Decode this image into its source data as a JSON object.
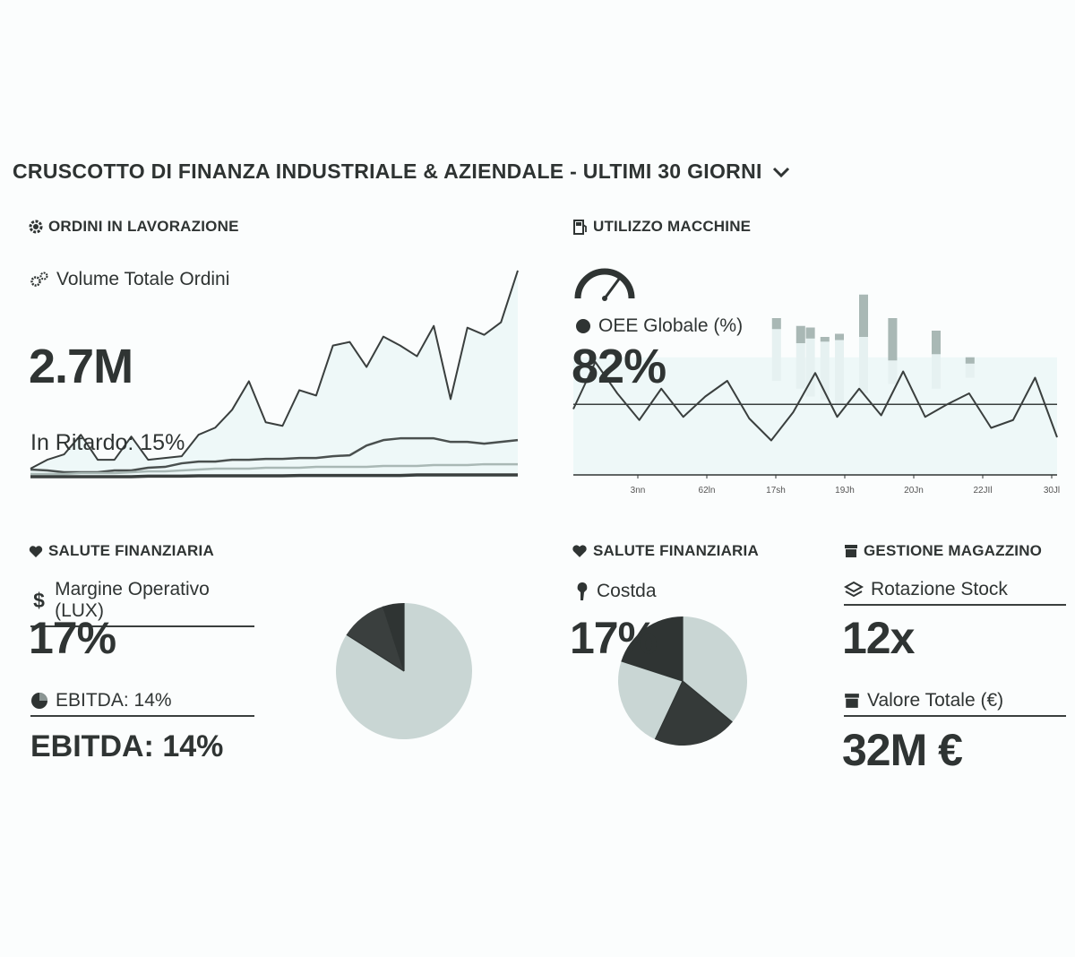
{
  "header": {
    "title": "CRUSCOTTO DI FINANZA INDUSTRIALE & AZIENDALE - ULTIMI 30 GIORNI"
  },
  "orders": {
    "section_title": "ORDINI IN LAVORAZIONE",
    "metric_label": "Volume Totale Ordini",
    "metric_value": "2.7M",
    "delay_label": "In Ritardo: 15%"
  },
  "machines": {
    "section_title": "UTILIZZO MACCHINE",
    "metric_label": "OEE Globale (%)",
    "metric_value": "82%"
  },
  "finance_left": {
    "section_title": "SALUTE FINANZIARIA",
    "margin_label": "Margine Operativo (LUX)",
    "margin_value": "17%",
    "ebitda_label": "EBITDA: 14%",
    "ebitda_value": "EBITDA: 14%"
  },
  "finance_right": {
    "section_title": "SALUTE FINANZIARIA",
    "cost_label": "Costda",
    "cost_value": "17%"
  },
  "warehouse": {
    "section_title": "GESTIONE MAGAZZINO",
    "rotation_label": "Rotazione Stock",
    "rotation_value": "12x",
    "value_label": "Valore Totale (€)",
    "value_value": "32M €"
  },
  "colors": {
    "dark": "#2f3433",
    "fill": "#eef8f8",
    "light": "#c9d6d4",
    "mid": "#a9b8b5"
  },
  "chart_data": [
    {
      "type": "area",
      "series": [
        {
          "values": [
            0.5,
            1.0,
            1.3,
            2.4,
            1.0,
            1.0,
            2.3,
            1.0,
            1.1,
            1.2,
            2.4,
            2.8,
            3.8,
            5.4,
            3.1,
            2.9,
            4.9,
            4.6,
            7.4,
            7.6,
            6.2,
            7.9,
            7.4,
            6.8,
            8.5,
            4.4,
            8.4,
            8.0,
            8.7,
            11.6
          ]
        },
        {
          "values": [
            0.45,
            0.4,
            0.3,
            0.3,
            0.3,
            0.4,
            0.4,
            0.55,
            0.6,
            0.8,
            0.9,
            0.9,
            1.0,
            1.0,
            1.05,
            1.05,
            1.1,
            1.1,
            1.2,
            1.25,
            1.8,
            2.1,
            2.2,
            2.2,
            2.2,
            2.0,
            2.0,
            1.9,
            2.0,
            2.1
          ]
        },
        {
          "values": [
            0.2,
            0.2,
            0.2,
            0.25,
            0.25,
            0.25,
            0.3,
            0.35,
            0.35,
            0.4,
            0.45,
            0.5,
            0.5,
            0.5,
            0.55,
            0.55,
            0.55,
            0.6,
            0.6,
            0.6,
            0.6,
            0.65,
            0.65,
            0.65,
            0.7,
            0.7,
            0.7,
            0.75,
            0.75,
            0.75
          ]
        },
        {
          "values": [
            0.05,
            0.05,
            0.05,
            0.05,
            0.05,
            0.05,
            0.05,
            0.08,
            0.08,
            0.08,
            0.1,
            0.1,
            0.1,
            0.1,
            0.1,
            0.1,
            0.12,
            0.12,
            0.12,
            0.12,
            0.12,
            0.12,
            0.12,
            0.15,
            0.15,
            0.15,
            0.15,
            0.15,
            0.15,
            0.15
          ]
        }
      ]
    },
    {
      "type": "line",
      "x_ticks": [
        "3nn",
        "62ln",
        "17sh",
        "19Jh",
        "20Jn",
        "22JIl",
        "30Jl"
      ],
      "line": [
        42,
        72,
        52,
        35,
        55,
        37,
        50,
        60,
        36,
        22,
        40,
        65,
        37,
        55,
        38,
        66,
        37,
        45,
        52,
        30,
        35,
        62,
        24
      ],
      "reference": 45,
      "bars": [
        {
          "x": 0.42,
          "top": 100,
          "bottom": 60,
          "dark_from": 100,
          "dark_to": 93
        },
        {
          "x": 0.47,
          "top": 95,
          "bottom": 55,
          "dark_from": 95,
          "dark_to": 84
        },
        {
          "x": 0.49,
          "top": 94,
          "bottom": 50,
          "dark_from": 94,
          "dark_to": 87
        },
        {
          "x": 0.52,
          "top": 88,
          "bottom": 48,
          "dark_from": 88,
          "dark_to": 85
        },
        {
          "x": 0.55,
          "top": 90,
          "bottom": 45,
          "dark_from": 90,
          "dark_to": 86
        },
        {
          "x": 0.6,
          "top": 115,
          "bottom": 52,
          "dark_from": 115,
          "dark_to": 88
        },
        {
          "x": 0.66,
          "top": 100,
          "bottom": 58,
          "dark_from": 100,
          "dark_to": 73
        },
        {
          "x": 0.75,
          "top": 92,
          "bottom": 55,
          "dark_from": 92,
          "dark_to": 77
        },
        {
          "x": 0.82,
          "top": 75,
          "bottom": 62,
          "dark_from": 75,
          "dark_to": 71
        }
      ]
    },
    {
      "type": "pie",
      "slices": [
        {
          "value": 84,
          "color": "#c9d6d4"
        },
        {
          "value": 11,
          "color": "#3a3f3e"
        },
        {
          "value": 5,
          "color": "#2f3433"
        }
      ]
    },
    {
      "type": "pie",
      "slices": [
        {
          "value": 36,
          "color": "#c9d6d4"
        },
        {
          "value": 21,
          "color": "#353a39"
        },
        {
          "value": 23,
          "color": "#c9d6d4"
        },
        {
          "value": 20,
          "color": "#2f3433"
        }
      ]
    }
  ]
}
